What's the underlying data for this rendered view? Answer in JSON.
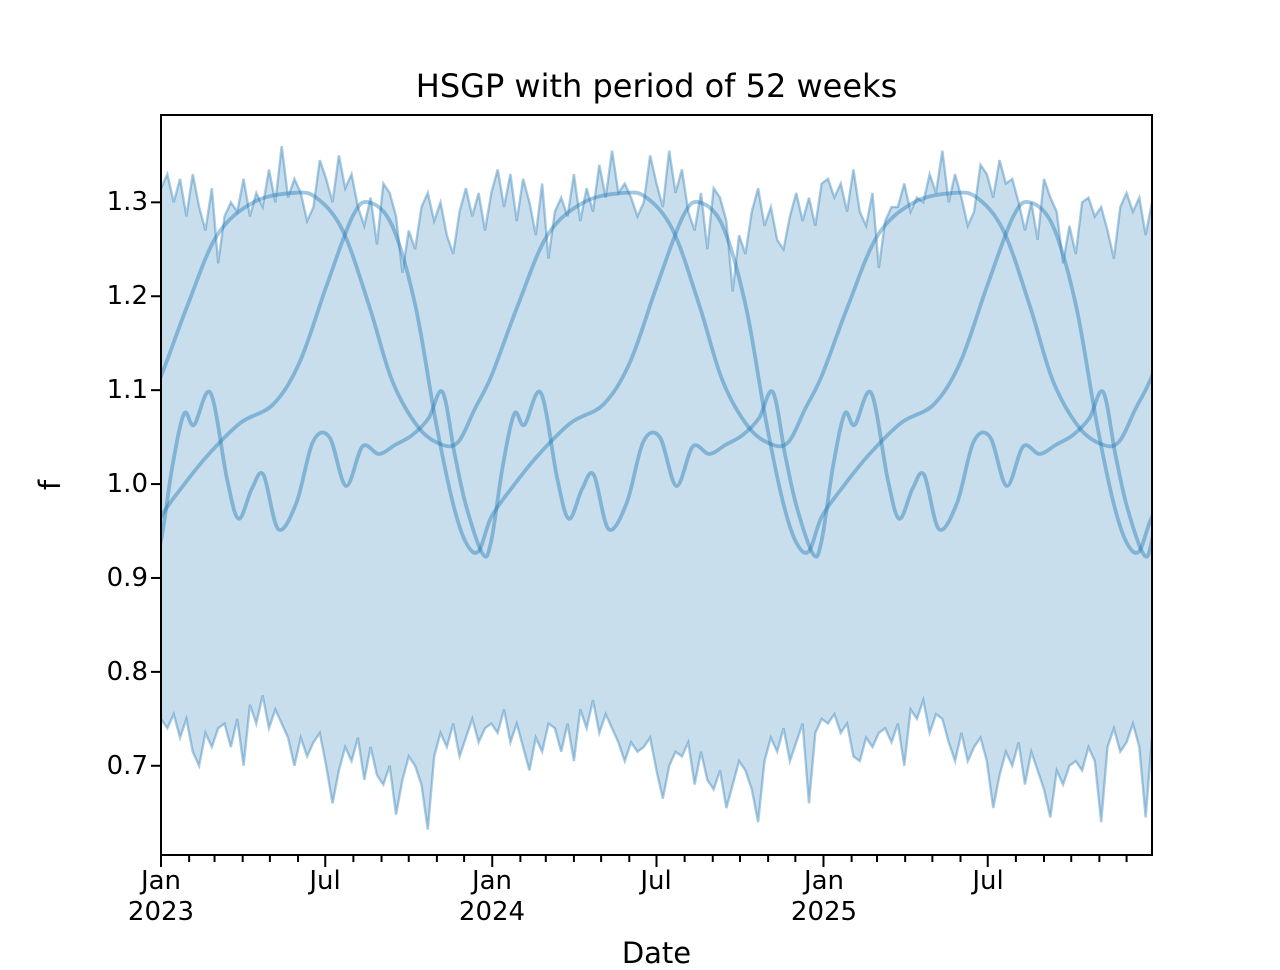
{
  "title": "HSGP with period of 52 weeks",
  "axes": {
    "ylabel": "f",
    "xlabel": "Date",
    "y_ticks": [
      {
        "label": "1.3",
        "value": 1.3
      },
      {
        "label": "1.2",
        "value": 1.2
      },
      {
        "label": "1.1",
        "value": 1.1
      },
      {
        "label": "1.0",
        "value": 1.0
      },
      {
        "label": "0.9",
        "value": 0.9
      },
      {
        "label": "0.8",
        "value": 0.8
      },
      {
        "label": "0.7",
        "value": 0.7
      }
    ],
    "x_ticks": [
      {
        "month": "Jan",
        "year": "2023",
        "week": 0
      },
      {
        "month": "Jul",
        "year": "",
        "week": 25.857
      },
      {
        "month": "Jan",
        "year": "2024",
        "week": 52.143
      },
      {
        "month": "Jul",
        "year": "",
        "week": 77.857
      },
      {
        "month": "Jan",
        "year": "2025",
        "week": 104.286
      },
      {
        "month": "Jul",
        "year": "",
        "week": 130.143
      }
    ]
  },
  "chart_data": {
    "type": "line",
    "title": "HSGP with period of 52 weeks",
    "xlabel": "Date",
    "ylabel": "f",
    "x_unit": "weeks since 2023-01-01",
    "x_range_weeks": [
      0,
      156
    ],
    "period_weeks": 52,
    "n_periods": 3,
    "ylim": [
      0.605,
      1.393
    ],
    "grid": false,
    "legend": "none",
    "colors": {
      "base": "#1f77b4",
      "fill_alpha": 0.24,
      "edge_alpha": 0.38,
      "line_alpha": 0.42,
      "axis": "#000000"
    },
    "band": {
      "name": "posterior-band-weekly",
      "upper": [
        1.315,
        1.33,
        1.3,
        1.325,
        1.285,
        1.33,
        1.295,
        1.27,
        1.315,
        1.235,
        1.285,
        1.3,
        1.29,
        1.325,
        1.285,
        1.31,
        1.295,
        1.335,
        1.3,
        1.36,
        1.305,
        1.325,
        1.31,
        1.28,
        1.295,
        1.345,
        1.325,
        1.3,
        1.35,
        1.315,
        1.33,
        1.295,
        1.275,
        1.305,
        1.255,
        1.32,
        1.31,
        1.285,
        1.225,
        1.27,
        1.25,
        1.295,
        1.31,
        1.28,
        1.3,
        1.265,
        1.245,
        1.29,
        1.315,
        1.285,
        1.31,
        1.27,
        1.31,
        1.335,
        1.295,
        1.33,
        1.28,
        1.325,
        1.3,
        1.265,
        1.32,
        1.24,
        1.29,
        1.305,
        1.285,
        1.33,
        1.28,
        1.315,
        1.29,
        1.34,
        1.305,
        1.355,
        1.31,
        1.32,
        1.305,
        1.285,
        1.3,
        1.35,
        1.32,
        1.295,
        1.355,
        1.31,
        1.335,
        1.29,
        1.27,
        1.31,
        1.25,
        1.315,
        1.305,
        1.28,
        1.205,
        1.265,
        1.245,
        1.29,
        1.315,
        1.275,
        1.295,
        1.26,
        1.25,
        1.285,
        1.31,
        1.28,
        1.305,
        1.275,
        1.32,
        1.325,
        1.305,
        1.32,
        1.29,
        1.335,
        1.29,
        1.275,
        1.31,
        1.23,
        1.28,
        1.295,
        1.295,
        1.32,
        1.29,
        1.305,
        1.3,
        1.33,
        1.31,
        1.355,
        1.3,
        1.33,
        1.305,
        1.275,
        1.29,
        1.34,
        1.33,
        1.305,
        1.345,
        1.32,
        1.325,
        1.3,
        1.27,
        1.3,
        1.26,
        1.325,
        1.305,
        1.29,
        1.235,
        1.275,
        1.245,
        1.3,
        1.305,
        1.285,
        1.295,
        1.27,
        1.24,
        1.295,
        1.31,
        1.29,
        1.305,
        1.265,
        1.3
      ],
      "lower": [
        0.75,
        0.74,
        0.755,
        0.73,
        0.75,
        0.715,
        0.7,
        0.735,
        0.72,
        0.74,
        0.745,
        0.72,
        0.75,
        0.7,
        0.765,
        0.745,
        0.775,
        0.74,
        0.76,
        0.745,
        0.73,
        0.7,
        0.73,
        0.71,
        0.725,
        0.735,
        0.7,
        0.66,
        0.695,
        0.72,
        0.705,
        0.73,
        0.685,
        0.72,
        0.69,
        0.68,
        0.7,
        0.648,
        0.685,
        0.71,
        0.7,
        0.68,
        0.632,
        0.71,
        0.735,
        0.72,
        0.745,
        0.71,
        0.73,
        0.75,
        0.725,
        0.74,
        0.745,
        0.735,
        0.76,
        0.725,
        0.745,
        0.72,
        0.695,
        0.73,
        0.715,
        0.745,
        0.74,
        0.715,
        0.745,
        0.705,
        0.76,
        0.74,
        0.77,
        0.735,
        0.755,
        0.74,
        0.725,
        0.705,
        0.725,
        0.715,
        0.72,
        0.73,
        0.695,
        0.665,
        0.7,
        0.715,
        0.71,
        0.725,
        0.68,
        0.715,
        0.685,
        0.675,
        0.695,
        0.655,
        0.68,
        0.705,
        0.695,
        0.675,
        0.64,
        0.705,
        0.73,
        0.715,
        0.74,
        0.705,
        0.725,
        0.745,
        0.66,
        0.735,
        0.75,
        0.745,
        0.755,
        0.735,
        0.745,
        0.71,
        0.705,
        0.73,
        0.72,
        0.735,
        0.74,
        0.725,
        0.745,
        0.7,
        0.76,
        0.75,
        0.77,
        0.735,
        0.755,
        0.75,
        0.725,
        0.705,
        0.735,
        0.705,
        0.72,
        0.73,
        0.705,
        0.655,
        0.69,
        0.715,
        0.7,
        0.725,
        0.68,
        0.715,
        0.695,
        0.675,
        0.645,
        0.695,
        0.68,
        0.7,
        0.705,
        0.695,
        0.72,
        0.705,
        0.64,
        0.72,
        0.74,
        0.715,
        0.725,
        0.745,
        0.72,
        0.645,
        0.73
      ]
    },
    "series": [
      {
        "name": "hsgp-sample-1",
        "periodic": true,
        "control_points": [
          [
            0.0,
            1.115
          ],
          [
            0.08,
            1.19
          ],
          [
            0.17,
            1.265
          ],
          [
            0.28,
            1.3
          ],
          [
            0.4,
            1.31
          ],
          [
            0.47,
            1.305
          ],
          [
            0.55,
            1.27
          ],
          [
            0.63,
            1.19
          ],
          [
            0.7,
            1.11
          ],
          [
            0.78,
            1.06
          ],
          [
            0.85,
            1.042
          ],
          [
            0.9,
            1.045
          ],
          [
            0.95,
            1.08
          ]
        ]
      },
      {
        "name": "hsgp-sample-2",
        "periodic": true,
        "control_points": [
          [
            0.0,
            0.965
          ],
          [
            0.06,
            0.995
          ],
          [
            0.14,
            1.03
          ],
          [
            0.24,
            1.065
          ],
          [
            0.34,
            1.085
          ],
          [
            0.42,
            1.13
          ],
          [
            0.5,
            1.21
          ],
          [
            0.58,
            1.285
          ],
          [
            0.63,
            1.3
          ],
          [
            0.7,
            1.275
          ],
          [
            0.77,
            1.19
          ],
          [
            0.83,
            1.07
          ],
          [
            0.88,
            0.985
          ],
          [
            0.92,
            0.94
          ],
          [
            0.96,
            0.928
          ]
        ]
      },
      {
        "name": "hsgp-sample-3",
        "periodic": true,
        "control_points": [
          [
            0.0,
            0.94
          ],
          [
            0.035,
            1.02
          ],
          [
            0.07,
            1.075
          ],
          [
            0.1,
            1.063
          ],
          [
            0.15,
            1.097
          ],
          [
            0.2,
            1.005
          ],
          [
            0.235,
            0.963
          ],
          [
            0.275,
            0.995
          ],
          [
            0.31,
            1.01
          ],
          [
            0.355,
            0.952
          ],
          [
            0.41,
            0.98
          ],
          [
            0.46,
            1.045
          ],
          [
            0.51,
            1.05
          ],
          [
            0.56,
            0.998
          ],
          [
            0.61,
            1.04
          ],
          [
            0.66,
            1.032
          ],
          [
            0.71,
            1.042
          ],
          [
            0.76,
            1.052
          ],
          [
            0.81,
            1.07
          ],
          [
            0.852,
            1.098
          ],
          [
            0.89,
            1.03
          ],
          [
            0.925,
            0.975
          ],
          [
            0.975,
            0.925
          ]
        ]
      }
    ]
  }
}
